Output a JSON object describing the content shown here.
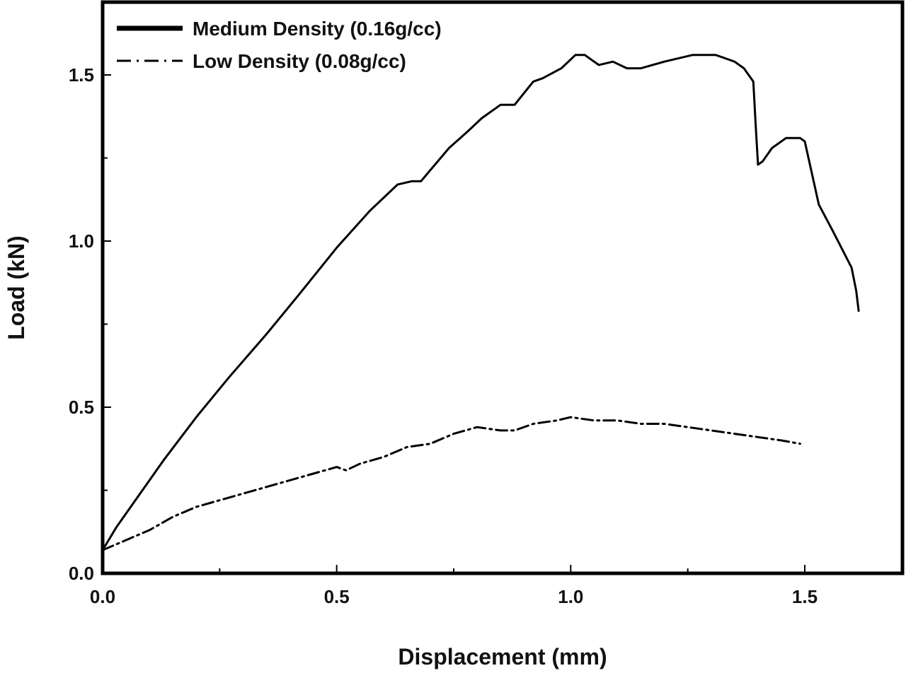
{
  "chart_data": {
    "type": "line",
    "xlabel": "Displacement (mm)",
    "ylabel": "Load (kN)",
    "xlim": [
      0,
      1.7
    ],
    "ylim": [
      0,
      1.72
    ],
    "x_ticks": [
      "0.0",
      "0.5",
      "1.0",
      "1.5"
    ],
    "y_ticks": [
      "0.0",
      "0.5",
      "1.0",
      "1.5"
    ],
    "grid": false,
    "legend_position": "top-left",
    "series": [
      {
        "name": "Medium Density (0.16g/cc)",
        "line_style": "solid",
        "x": [
          0,
          0.03,
          0.08,
          0.13,
          0.2,
          0.27,
          0.35,
          0.42,
          0.5,
          0.57,
          0.63,
          0.66,
          0.68,
          0.74,
          0.78,
          0.81,
          0.85,
          0.88,
          0.92,
          0.94,
          0.98,
          1.01,
          1.03,
          1.06,
          1.09,
          1.12,
          1.15,
          1.2,
          1.26,
          1.31,
          1.35,
          1.37,
          1.39,
          1.395,
          1.4,
          1.41,
          1.43,
          1.46,
          1.49,
          1.5,
          1.53,
          1.56,
          1.6,
          1.61,
          1.615
        ],
        "y": [
          0.07,
          0.14,
          0.24,
          0.34,
          0.47,
          0.59,
          0.72,
          0.84,
          0.98,
          1.09,
          1.17,
          1.18,
          1.18,
          1.28,
          1.33,
          1.37,
          1.41,
          1.41,
          1.48,
          1.49,
          1.52,
          1.56,
          1.56,
          1.53,
          1.54,
          1.52,
          1.52,
          1.54,
          1.56,
          1.56,
          1.54,
          1.52,
          1.48,
          1.35,
          1.23,
          1.24,
          1.28,
          1.31,
          1.31,
          1.3,
          1.11,
          1.03,
          0.92,
          0.85,
          0.79
        ]
      },
      {
        "name": "Low Density (0.08g/cc)",
        "line_style": "dash-dot",
        "x": [
          0,
          0.05,
          0.1,
          0.15,
          0.2,
          0.25,
          0.3,
          0.35,
          0.4,
          0.45,
          0.5,
          0.52,
          0.55,
          0.6,
          0.65,
          0.7,
          0.75,
          0.8,
          0.85,
          0.88,
          0.92,
          0.97,
          1.0,
          1.05,
          1.1,
          1.15,
          1.2,
          1.25,
          1.3,
          1.35,
          1.4,
          1.45,
          1.49
        ],
        "y": [
          0.07,
          0.1,
          0.13,
          0.17,
          0.2,
          0.22,
          0.24,
          0.26,
          0.28,
          0.3,
          0.32,
          0.31,
          0.33,
          0.35,
          0.38,
          0.39,
          0.42,
          0.44,
          0.43,
          0.43,
          0.45,
          0.46,
          0.47,
          0.46,
          0.46,
          0.45,
          0.45,
          0.44,
          0.43,
          0.42,
          0.41,
          0.4,
          0.39
        ]
      }
    ]
  },
  "colors": {
    "line": "#000000",
    "text": "#111111",
    "background": "#ffffff"
  }
}
